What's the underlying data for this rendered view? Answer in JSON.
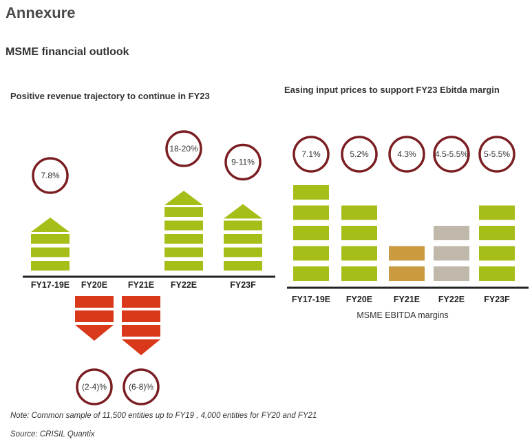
{
  "page": {
    "title": "Annexure",
    "subtitle": "MSME financial outlook",
    "note": "Note: Common sample of 11,500 entities up to FY19 , 4,000 entities for FY20 and FY21",
    "source": "Source: CRISIL Quantix"
  },
  "colors": {
    "green": "#a7bd18",
    "red": "#d9391a",
    "orange": "#c99a3f",
    "grey": "#c0b8ab",
    "circle": "#7b1e22"
  },
  "chart_data": [
    {
      "type": "bar",
      "title": "Positive revenue trajectory to continue in FY23",
      "xlabel": "",
      "ylabel": "",
      "categories": [
        "FY17-19E",
        "FY20E",
        "FY21E",
        "FY22E",
        "FY23F"
      ],
      "values": [
        7.8,
        -3,
        -7,
        19,
        10
      ],
      "labels": [
        "7.8%",
        "(2-4)%",
        "(6-8)%",
        "18-20%",
        "9-11%"
      ],
      "blocks": [
        3,
        -2,
        -3,
        5,
        4
      ]
    },
    {
      "type": "bar",
      "title": "Easing input prices to support FY23 Ebitda margin",
      "xlabel": "MSME EBITDA margins",
      "ylabel": "",
      "categories": [
        "FY17-19E",
        "FY20E",
        "FY21E",
        "FY22E",
        "FY23F"
      ],
      "values": [
        7.1,
        5.2,
        4.3,
        5.0,
        5.25
      ],
      "labels": [
        "7.1%",
        "5.2%",
        "4.3%",
        "4.5-5.5%",
        "5-5.5%"
      ],
      "blocks": [
        5,
        4,
        2,
        3,
        4
      ]
    }
  ]
}
